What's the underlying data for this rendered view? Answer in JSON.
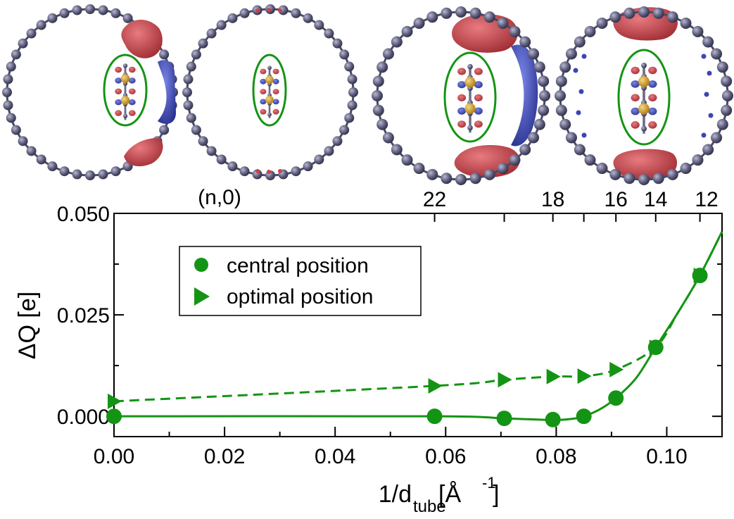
{
  "chart_data": {
    "type": "line",
    "xlabel": {
      "main": "1/d",
      "sub": "tube",
      "unit": "[Å",
      "exp": "-1",
      "close": "]"
    },
    "ylabel": "ΔQ [e]",
    "xlim": [
      0.0,
      0.11
    ],
    "ylim": [
      -0.005,
      0.05
    ],
    "x_ticks": [
      0.0,
      0.02,
      0.04,
      0.06,
      0.08,
      0.1
    ],
    "x_tick_labels": [
      "0.00",
      "0.02",
      "0.04",
      "0.06",
      "0.08",
      "0.10"
    ],
    "y_ticks": [
      0.0,
      0.025,
      0.05
    ],
    "y_tick_labels": [
      "0.000",
      "0.025",
      "0.050"
    ],
    "top_axis_label": "(n,0)",
    "top_ticks": [
      {
        "x": 0.058,
        "label": "22"
      },
      {
        "x": 0.0706,
        "label": ""
      },
      {
        "x": 0.0794,
        "label": "18"
      },
      {
        "x": 0.085,
        "label": ""
      },
      {
        "x": 0.0908,
        "label": "16"
      },
      {
        "x": 0.098,
        "label": "14"
      },
      {
        "x": 0.106,
        "label": ""
      },
      {
        "x": 0.11,
        "label": "12"
      }
    ],
    "series": [
      {
        "name": "central position",
        "marker": "circle",
        "line": "solid",
        "color": "#149414",
        "x": [
          0.0,
          0.058,
          0.0706,
          0.0794,
          0.085,
          0.0908,
          0.098,
          0.106
        ],
        "y": [
          0.0,
          0.0,
          -0.0005,
          -0.0008,
          0.0,
          0.0045,
          0.017,
          0.0347
        ],
        "curve_x": [
          0.0,
          0.058,
          0.0706,
          0.0794,
          0.083,
          0.085,
          0.088,
          0.0908,
          0.0945,
          0.098,
          0.102,
          0.106,
          0.11
        ],
        "curve_y": [
          0.0,
          0.0,
          -0.0005,
          -0.0009,
          -0.0006,
          0.0,
          0.0018,
          0.0045,
          0.0095,
          0.017,
          0.0255,
          0.0347,
          0.0455
        ]
      },
      {
        "name": "optimal position",
        "marker": "triangle-right",
        "line": "dashed",
        "color": "#149414",
        "x": [
          0.0,
          0.058,
          0.0706,
          0.0794,
          0.085,
          0.0908,
          0.098,
          0.106
        ],
        "y": [
          0.0037,
          0.0075,
          0.009,
          0.0098,
          0.0099,
          0.0115,
          0.017,
          0.0347
        ],
        "curve_x": [
          0.0,
          0.058,
          0.0706,
          0.0794,
          0.085,
          0.0908,
          0.098,
          0.102,
          0.106,
          0.11
        ],
        "curve_y": [
          0.0037,
          0.0075,
          0.009,
          0.0098,
          0.0099,
          0.0115,
          0.017,
          0.0255,
          0.0347,
          0.0455
        ]
      }
    ],
    "legend": {
      "position": "top-left",
      "entries": [
        "central position",
        "optimal position"
      ]
    }
  },
  "insets": {
    "count": 4,
    "description_colors": {
      "tube_atom": "#5a5a7a",
      "positive": "#c8444a",
      "negative": "#3c46b4",
      "molecule_s": "#d4a020",
      "ellipse": "#149414"
    }
  }
}
